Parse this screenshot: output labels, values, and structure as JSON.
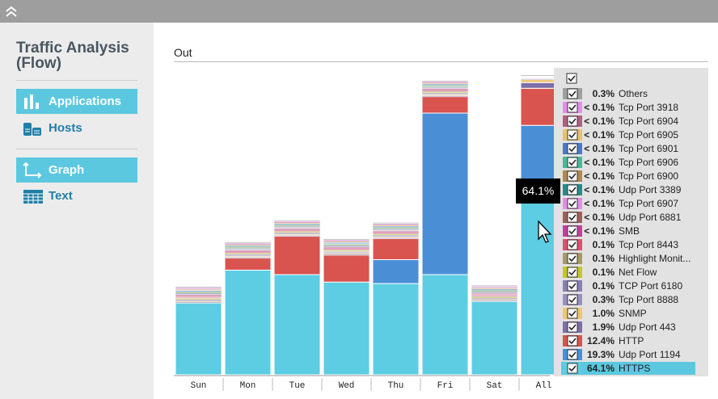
{
  "sidebar": {
    "title": "Traffic Analysis (Flow)",
    "views": [
      "Applications",
      "Hosts"
    ],
    "modes": [
      "Graph",
      "Text"
    ]
  },
  "panel_title": "Out",
  "chart_data": {
    "type": "bar",
    "stacked": true,
    "categories": [
      "Sun",
      "Mon",
      "Tue",
      "Wed",
      "Thu",
      "Fri",
      "Sat",
      "All"
    ],
    "series": [
      {
        "name": "HTTPS",
        "color": "#5ccde3",
        "values": [
          24,
          35,
          33.5,
          31,
          30.5,
          33.5,
          24.5,
          64.1
        ],
        "value_labels": [
          null,
          null,
          null,
          null,
          null,
          null,
          null,
          "64.1%"
        ]
      },
      {
        "name": "Udp Port 1194",
        "color": "#4a8fd6",
        "values": [
          0,
          0,
          0,
          0,
          8,
          54,
          0,
          19.3
        ],
        "value_labels": [
          null,
          null,
          null,
          null,
          null,
          null,
          null,
          "19.3%"
        ]
      },
      {
        "name": "HTTP",
        "color": "#d9534f",
        "values": [
          0,
          4,
          12.8,
          9,
          7,
          5.5,
          0,
          12.4
        ],
        "value_labels": [
          null,
          null,
          null,
          null,
          null,
          null,
          null,
          "12.4%"
        ]
      },
      {
        "name": "Udp Port 443",
        "color": "#7e6fa8",
        "values": [
          0.3,
          0.3,
          0.3,
          0.3,
          0.3,
          0.3,
          0.3,
          1.9
        ],
        "value_labels": [
          null,
          null,
          null,
          null,
          null,
          null,
          null,
          "1.9%"
        ]
      },
      {
        "name": "SNMP",
        "color": "#f0c674",
        "values": [
          0.3,
          0.3,
          0.3,
          0.3,
          0.3,
          0.3,
          0.3,
          1.0
        ],
        "value_labels": [
          null,
          null,
          null,
          null,
          null,
          null,
          null,
          "1.0%"
        ]
      },
      {
        "name": "Tcp Port 8888",
        "color": "#9b8fbf",
        "values": [
          0.3,
          0.3,
          0.3,
          0.3,
          0.3,
          0.3,
          0.3,
          0.3
        ],
        "value_labels": [
          null,
          null,
          null,
          null,
          null,
          null,
          null,
          "0.3%"
        ]
      },
      {
        "name": "TCP Port 6180",
        "color": "#8b7fb5",
        "values": [
          0.3,
          0.3,
          0.3,
          0.3,
          0.3,
          0.3,
          0.3,
          0.1
        ],
        "value_labels": [
          null,
          null,
          null,
          null,
          null,
          null,
          null,
          "0.1%"
        ]
      },
      {
        "name": "Net Flow",
        "color": "#c5c530",
        "values": [
          0.3,
          0.3,
          0.3,
          0.3,
          0.3,
          0.3,
          0.3,
          0.1
        ],
        "value_labels": [
          null,
          null,
          null,
          null,
          null,
          null,
          null,
          "0.1%"
        ]
      },
      {
        "name": "Highlight Monit...",
        "color": "#a89a6a",
        "values": [
          0.3,
          0.3,
          0.3,
          0.3,
          0.3,
          0.3,
          0.3,
          0.1
        ],
        "value_labels": [
          null,
          null,
          null,
          null,
          null,
          null,
          null,
          "0.1%"
        ]
      },
      {
        "name": "Tcp Port 8443",
        "color": "#e05070",
        "values": [
          0.3,
          0.3,
          0.3,
          0.3,
          0.3,
          0.3,
          0.3,
          0.1
        ],
        "value_labels": [
          null,
          null,
          null,
          null,
          null,
          null,
          null,
          "0.1%"
        ]
      },
      {
        "name": "SMB",
        "color": "#c040a0",
        "values": [
          0.3,
          0.3,
          0.3,
          0.3,
          0.3,
          0.3,
          0.3,
          0.05
        ],
        "value_labels": [
          null,
          null,
          null,
          null,
          null,
          null,
          null,
          "< 0.1%"
        ]
      },
      {
        "name": "Udp Port 6881",
        "color": "#a0605a",
        "values": [
          0.3,
          0.3,
          0.3,
          0.3,
          0.3,
          0.3,
          0.3,
          0.05
        ],
        "value_labels": [
          null,
          null,
          null,
          null,
          null,
          null,
          null,
          "< 0.1%"
        ]
      },
      {
        "name": "Tcp Port 6907",
        "color": "#e090e0",
        "values": [
          0.3,
          0.3,
          0.3,
          0.3,
          0.3,
          0.3,
          0.3,
          0.05
        ],
        "value_labels": [
          null,
          null,
          null,
          null,
          null,
          null,
          null,
          "< 0.1%"
        ]
      },
      {
        "name": "Udp Port 3389",
        "color": "#2a8a8a",
        "values": [
          0.3,
          0.3,
          0.3,
          0.3,
          0.3,
          0.3,
          0.3,
          0.05
        ],
        "value_labels": [
          null,
          null,
          null,
          null,
          null,
          null,
          null,
          "< 0.1%"
        ]
      },
      {
        "name": "Tcp Port 6900",
        "color": "#b08a50",
        "values": [
          0.3,
          0.3,
          0.3,
          0.3,
          0.3,
          0.3,
          0.3,
          0.05
        ],
        "value_labels": [
          null,
          null,
          null,
          null,
          null,
          null,
          null,
          "< 0.1%"
        ]
      },
      {
        "name": "Tcp Port 6906",
        "color": "#4ab89a",
        "values": [
          0.3,
          0.3,
          0.3,
          0.3,
          0.3,
          0.3,
          0.3,
          0.05
        ],
        "value_labels": [
          null,
          null,
          null,
          null,
          null,
          null,
          null,
          "< 0.1%"
        ]
      },
      {
        "name": "Tcp Port 6901",
        "color": "#4a7ac8",
        "values": [
          0.3,
          0.3,
          0.3,
          0.3,
          0.3,
          0.3,
          0.3,
          0.05
        ],
        "value_labels": [
          null,
          null,
          null,
          null,
          null,
          null,
          null,
          "< 0.1%"
        ]
      },
      {
        "name": "Tcp Port 6905",
        "color": "#e8c070",
        "values": [
          0.3,
          0.3,
          0.3,
          0.3,
          0.3,
          0.3,
          0.3,
          0.05
        ],
        "value_labels": [
          null,
          null,
          null,
          null,
          null,
          null,
          null,
          "< 0.1%"
        ]
      },
      {
        "name": "Tcp Port 6904",
        "color": "#b06080",
        "values": [
          0.3,
          0.3,
          0.3,
          0.3,
          0.3,
          0.3,
          0.3,
          0.05
        ],
        "value_labels": [
          null,
          null,
          null,
          null,
          null,
          null,
          null,
          "< 0.1%"
        ]
      },
      {
        "name": "Tcp Port 3918",
        "color": "#e090e8",
        "values": [
          0.3,
          0.3,
          0.3,
          0.3,
          0.3,
          0.3,
          0.3,
          0.05
        ],
        "value_labels": [
          null,
          null,
          null,
          null,
          null,
          null,
          null,
          "< 0.1%"
        ]
      },
      {
        "name": "Others",
        "color": "#a0a0a0",
        "values": [
          0.3,
          0.3,
          0.3,
          0.3,
          0.3,
          0.3,
          0.3,
          0.3
        ],
        "value_labels": [
          null,
          null,
          null,
          null,
          null,
          null,
          null,
          "0.3%"
        ]
      }
    ]
  }
}
